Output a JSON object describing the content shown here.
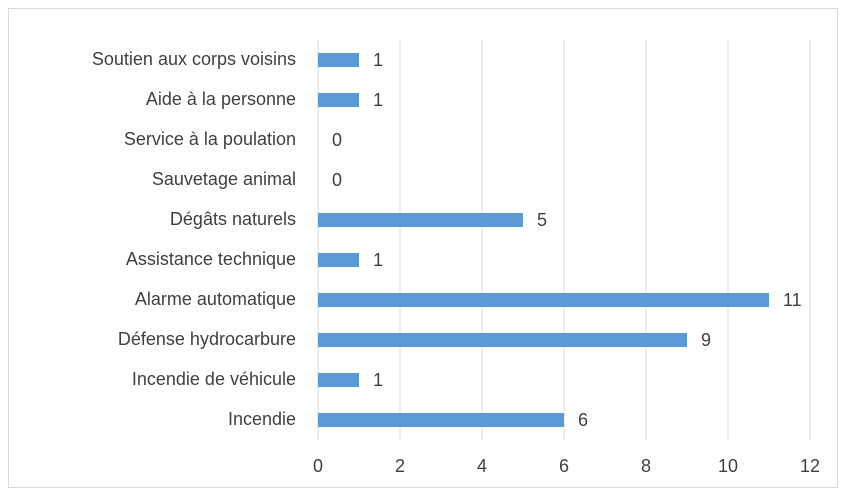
{
  "chart_data": {
    "type": "bar",
    "orientation": "horizontal",
    "categories": [
      "Soutien aux corps voisins",
      "Aide à la personne",
      "Service à la poulation",
      "Sauvetage animal",
      "Dégâts naturels",
      "Assistance technique",
      "Alarme automatique",
      "Défense hydrocarbure",
      "Incendie de véhicule",
      "Incendie"
    ],
    "values": [
      1,
      1,
      0,
      0,
      5,
      1,
      11,
      9,
      1,
      6
    ],
    "color": "#5b9bd5",
    "xlim": [
      0,
      12
    ],
    "xticks": [
      0,
      2,
      4,
      6,
      8,
      10,
      12
    ],
    "grid": true
  }
}
